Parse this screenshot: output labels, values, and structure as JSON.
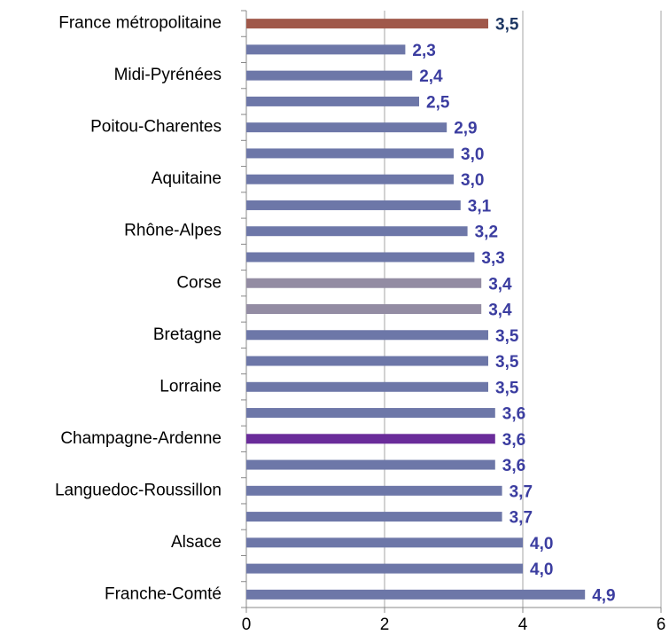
{
  "chart_data": {
    "type": "bar",
    "orientation": "horizontal",
    "categories": [
      "France métropolitaine",
      null,
      "Midi-Pyrénées",
      null,
      "Poitou-Charentes",
      null,
      "Aquitaine",
      null,
      "Rhône-Alpes",
      null,
      "Corse",
      null,
      "Bretagne",
      null,
      "Lorraine",
      null,
      "Champagne-Ardenne",
      null,
      "Languedoc-Roussillon",
      null,
      "Alsace",
      null,
      "Franche-Comté"
    ],
    "values": [
      3.5,
      2.3,
      2.4,
      2.5,
      2.9,
      3.0,
      3.0,
      3.1,
      3.2,
      3.3,
      3.4,
      3.4,
      3.5,
      3.5,
      3.5,
      3.6,
      3.6,
      3.6,
      3.7,
      3.7,
      4.0,
      4.0,
      4.9
    ],
    "value_labels": [
      "3,5",
      "2,3",
      "2,4",
      "2,5",
      "2,9",
      "3,0",
      "3,0",
      "3,1",
      "3,2",
      "3,3",
      "3,4",
      "3,4",
      "3,5",
      "3,5",
      "3,5",
      "3,6",
      "3,6",
      "3,6",
      "3,7",
      "3,7",
      "4,0",
      "4,0",
      "4,9"
    ],
    "colors": [
      "#a0584a",
      "#6d77a8",
      "#6d77a8",
      "#6d77a8",
      "#6d77a8",
      "#6d77a8",
      "#6d77a8",
      "#6d77a8",
      "#6d77a8",
      "#6d77a8",
      "#938ca3",
      "#938ca3",
      "#6d77a8",
      "#6d77a8",
      "#6d77a8",
      "#6d77a8",
      "#6a2c9a",
      "#6d77a8",
      "#6d77a8",
      "#6d77a8",
      "#6d77a8",
      "#6d77a8",
      "#6d77a8"
    ],
    "label_colors": [
      "#1f3864",
      "#3b3da0",
      "#3b3da0",
      "#3b3da0",
      "#3b3da0",
      "#3b3da0",
      "#3b3da0",
      "#3b3da0",
      "#3b3da0",
      "#3b3da0",
      "#3b3da0",
      "#3b3da0",
      "#3b3da0",
      "#3b3da0",
      "#3b3da0",
      "#3b3da0",
      "#3b3da0",
      "#3b3da0",
      "#3b3da0",
      "#3b3da0",
      "#3b3da0",
      "#3b3da0",
      "#3b3da0"
    ],
    "xlim": [
      0,
      6
    ],
    "xticks": [
      0,
      2,
      4,
      6
    ],
    "grid": true
  }
}
